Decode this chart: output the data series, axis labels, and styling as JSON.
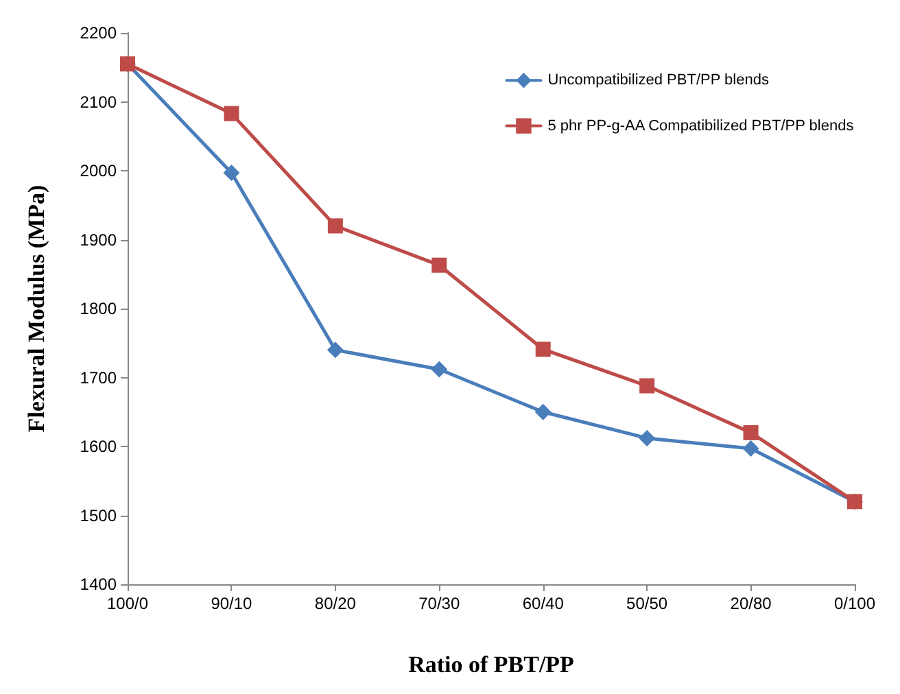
{
  "chart_data": {
    "type": "line",
    "xlabel": "Ratio of PBT/PP",
    "ylabel": "Flexural Modulus (MPa)",
    "categories": [
      "100/0",
      "90/10",
      "80/20",
      "70/30",
      "60/40",
      "50/50",
      "20/80",
      "0/100"
    ],
    "series": [
      {
        "name": "Uncompatibilized PBT/PP blends",
        "color": "#4a7ebb",
        "marker": "diamond",
        "values": [
          2155,
          1997,
          1740,
          1712,
          1650,
          1612,
          1597,
          1520
        ]
      },
      {
        "name": "5 phr PP-g-AA Compatibilized PBT/PP blends",
        "color": "#be4b48",
        "marker": "square",
        "values": [
          2155,
          2083,
          1920,
          1863,
          1741,
          1688,
          1620,
          1520
        ]
      }
    ],
    "ylim": [
      1400,
      2200
    ],
    "yticks": [
      1400,
      1500,
      1600,
      1700,
      1800,
      1900,
      2000,
      2100,
      2200
    ],
    "grid": false,
    "legend": "top right",
    "line_style": "solid"
  }
}
